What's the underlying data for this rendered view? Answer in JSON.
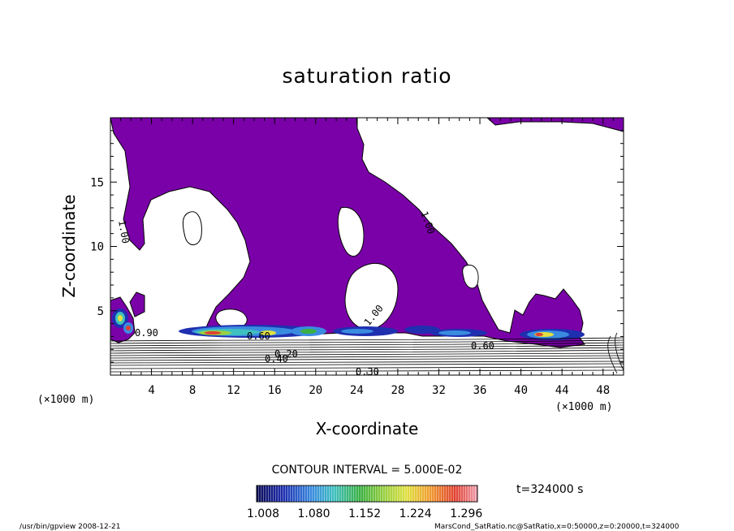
{
  "chart_data": {
    "type": "contour",
    "title": "saturation ratio",
    "xlabel": "X-coordinate",
    "ylabel": "Z-coordinate",
    "x_unit": "(×1000 m)",
    "y_unit": "(×1000 m)",
    "xlim": [
      0,
      50
    ],
    "ylim": [
      0,
      20
    ],
    "x_ticks": [
      4,
      8,
      12,
      16,
      20,
      24,
      28,
      32,
      36,
      40,
      44,
      48
    ],
    "y_ticks": [
      5,
      10,
      15
    ],
    "contour_interval_text": "CONTOUR INTERVAL = 5.000E-02",
    "time_text": "t=324000 s",
    "colorbar": {
      "tick_labels": [
        "1.008",
        "1.080",
        "1.152",
        "1.224",
        "1.296"
      ],
      "min": 1.008,
      "max": 1.296,
      "colors": [
        "#0b0b55",
        "#1f2fb0",
        "#3a8be0",
        "#3fc0c0",
        "#3ab040",
        "#9ad040",
        "#e0e040",
        "#f0a030",
        "#e04030",
        "#f0a0b0"
      ]
    },
    "shading_color": "#7a00a8",
    "contour_labels": [
      "1.00",
      "1.00",
      "1.00",
      "0.90",
      "0.60",
      "0.40",
      "0.20",
      "0.30",
      "0.60"
    ],
    "footer_left": "/usr/bin/gpview   2008-12-21",
    "footer_right": "MarsCond_SatRatio.nc@SatRatio,x=0:50000,z=0:20000,t=324000"
  }
}
